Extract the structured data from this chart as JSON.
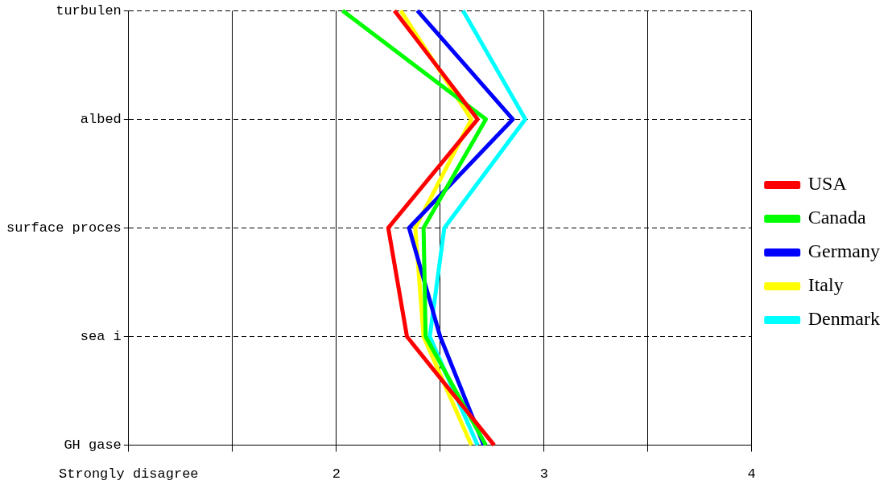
{
  "chart_data": {
    "type": "line",
    "orientation": "horizontal",
    "categories": [
      "turbulen",
      "albed",
      "surface proces",
      "sea i",
      "GH gase"
    ],
    "series": [
      {
        "name": "USA",
        "color": "#ff0000",
        "values": [
          2.28,
          2.68,
          2.25,
          2.34,
          2.76
        ]
      },
      {
        "name": "Canada",
        "color": "#00ff00",
        "values": [
          2.03,
          2.72,
          2.42,
          2.43,
          2.72
        ]
      },
      {
        "name": "Germany",
        "color": "#0000ff",
        "values": [
          2.39,
          2.85,
          2.35,
          2.5,
          2.71
        ]
      },
      {
        "name": "Italy",
        "color": "#ffff00",
        "values": [
          2.31,
          2.65,
          2.38,
          2.42,
          2.65
        ]
      },
      {
        "name": "Denmark",
        "color": "#00ffff",
        "values": [
          2.61,
          2.91,
          2.52,
          2.45,
          2.68
        ]
      }
    ],
    "xlim": [
      1,
      4
    ],
    "xticks": [
      {
        "value": 1,
        "label": "Strongly disagree"
      },
      {
        "value": 1.5,
        "label": null
      },
      {
        "value": 2,
        "label": "2"
      },
      {
        "value": 2.5,
        "label": null
      },
      {
        "value": 3,
        "label": "3"
      },
      {
        "value": 3.5,
        "label": null
      },
      {
        "value": 4,
        "label": "4"
      }
    ],
    "grid": true,
    "legend": "right",
    "marker": "none",
    "line_style": "solid"
  }
}
